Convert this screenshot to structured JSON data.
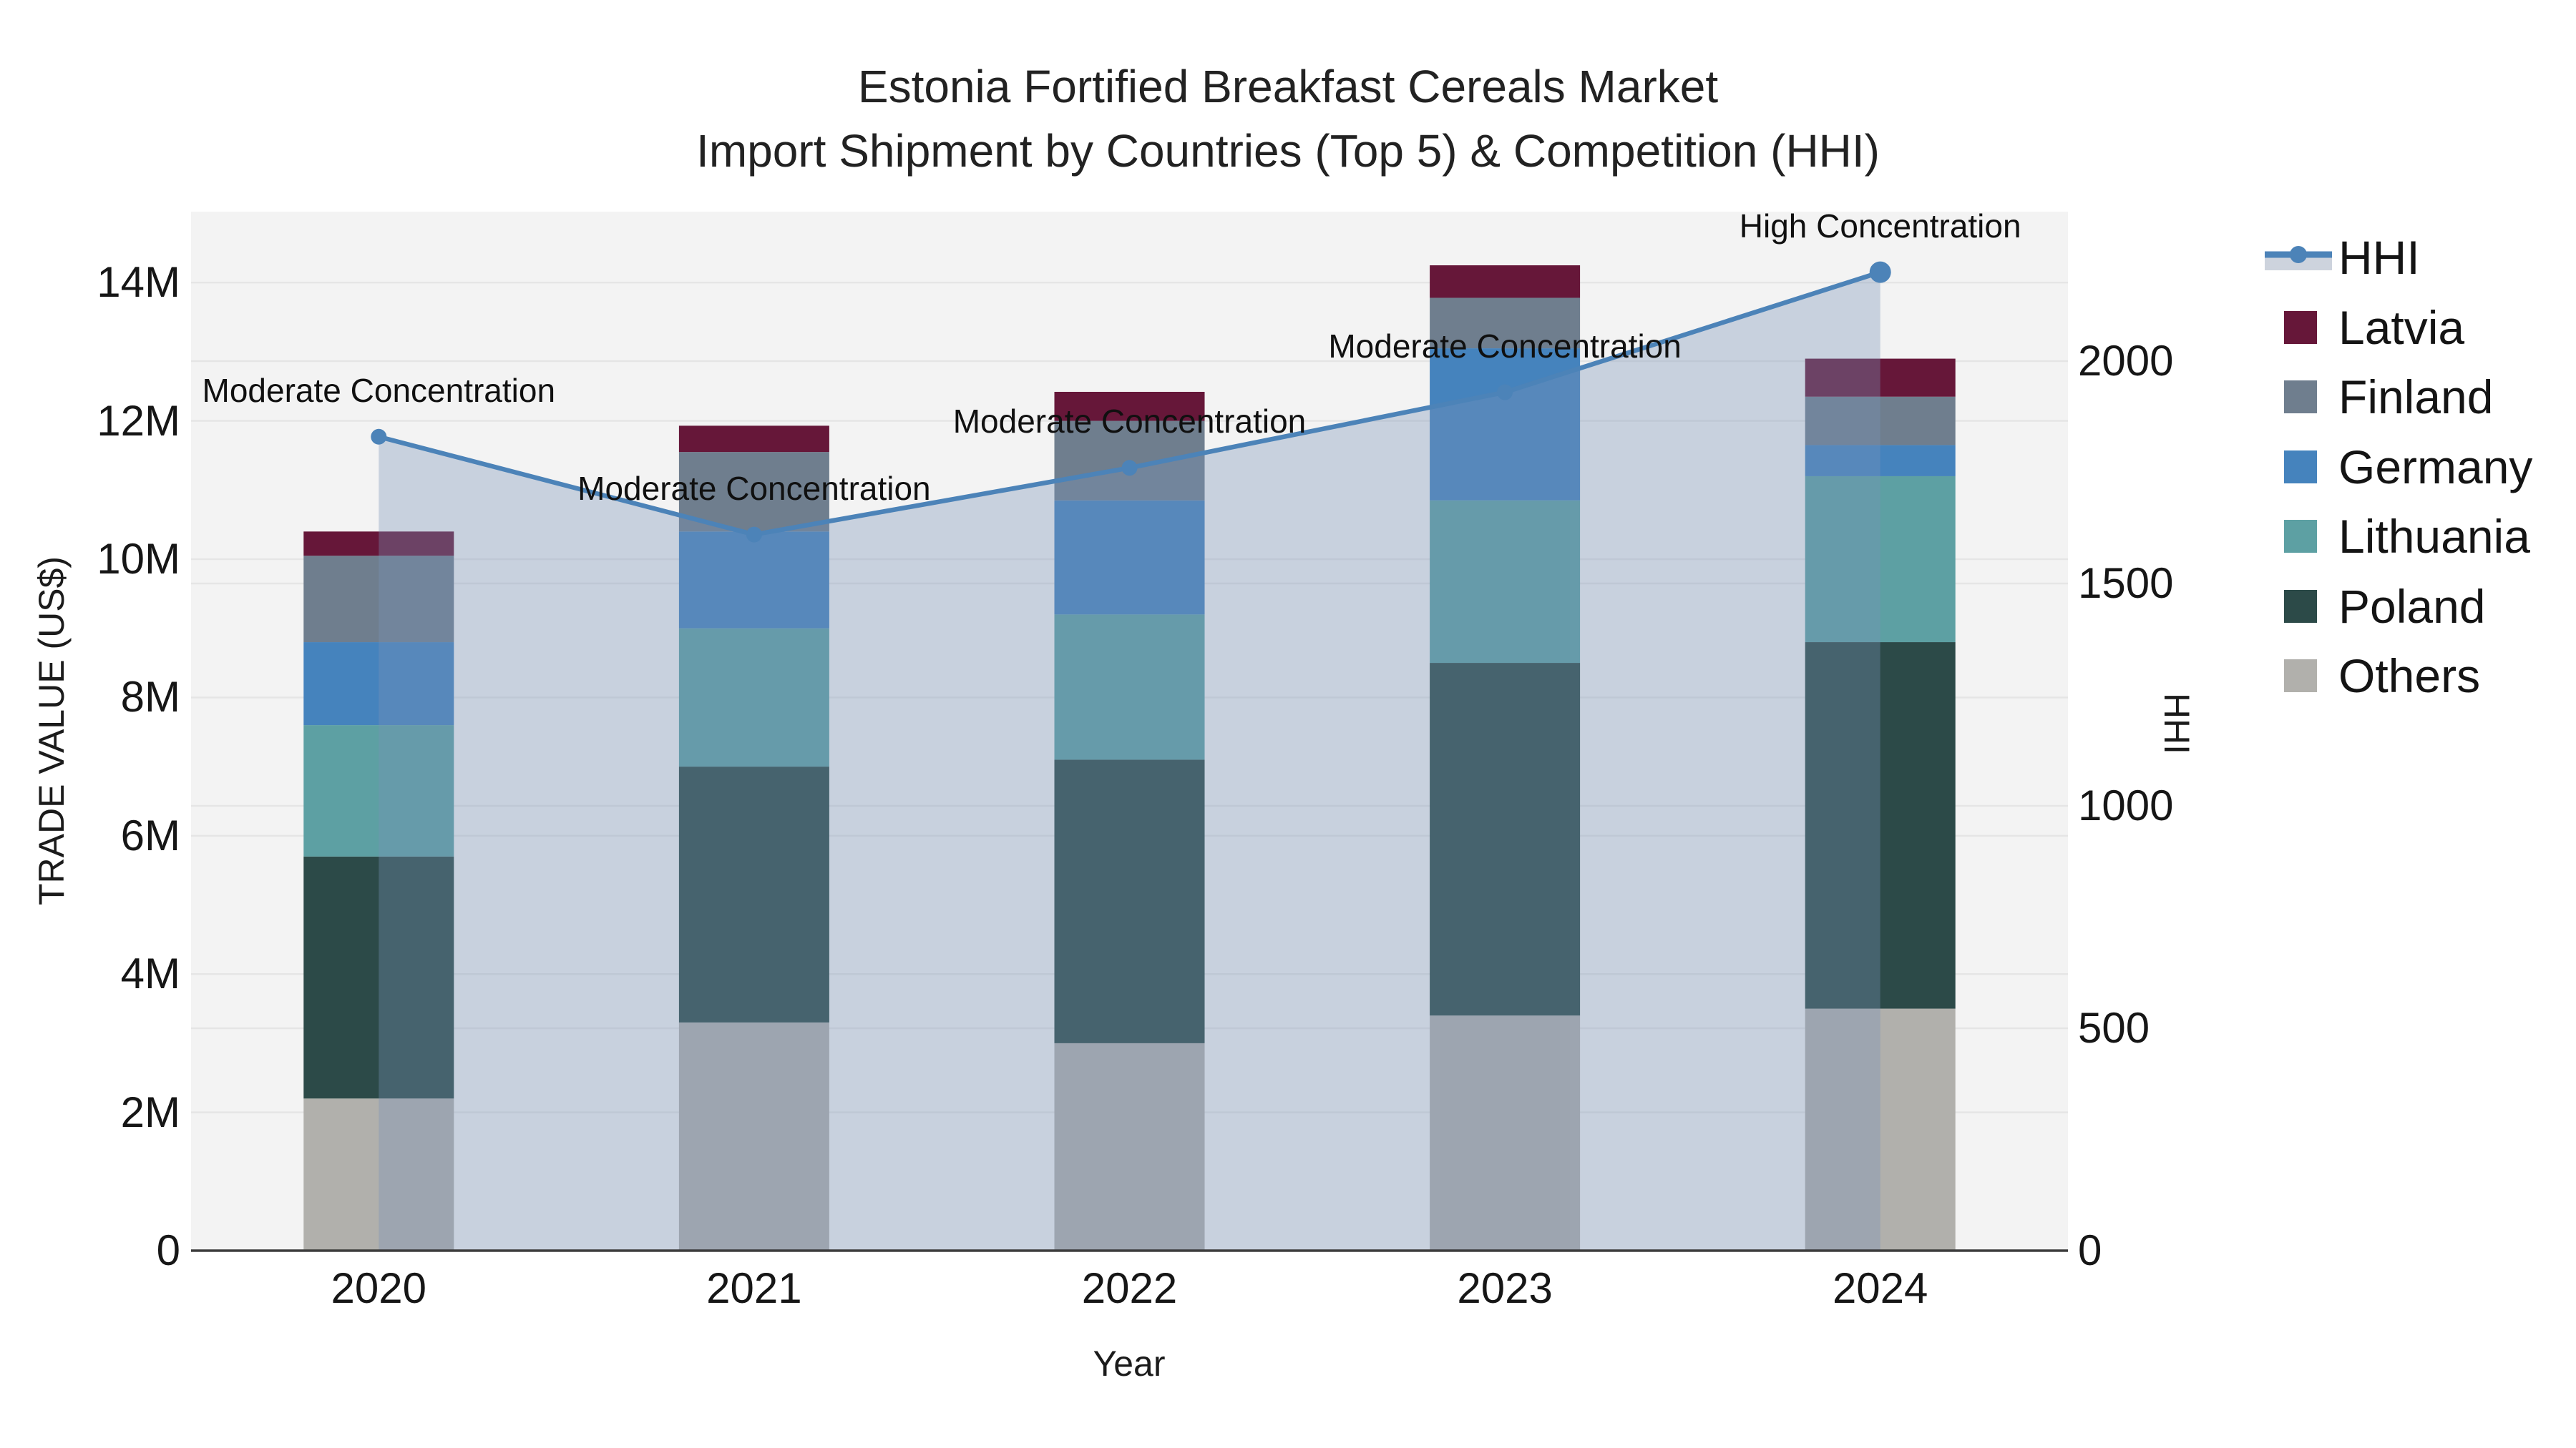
{
  "title": {
    "line1": "Estonia Fortified Breakfast Cereals Market",
    "line2": "Import Shipment by Countries (Top 5) & Competition (HHI)"
  },
  "chart_data": {
    "type": "bar",
    "subtype": "stacked-bar-with-line",
    "categories": [
      "2020",
      "2021",
      "2022",
      "2023",
      "2024"
    ],
    "series": [
      {
        "name": "Others",
        "color": "#b1b0ac",
        "values": [
          2.2,
          3.3,
          3.0,
          3.4,
          3.5
        ]
      },
      {
        "name": "Poland",
        "color": "#2c4a48",
        "values": [
          3.5,
          3.7,
          4.1,
          5.1,
          5.3
        ]
      },
      {
        "name": "Lithuania",
        "color": "#5da0a3",
        "values": [
          1.9,
          2.0,
          2.1,
          2.35,
          2.4
        ]
      },
      {
        "name": "Germany",
        "color": "#4583bd",
        "values": [
          1.2,
          1.4,
          1.65,
          2.2,
          0.45
        ]
      },
      {
        "name": "Finland",
        "color": "#6f7e8e",
        "values": [
          1.25,
          1.15,
          1.15,
          0.73,
          0.7
        ]
      },
      {
        "name": "Latvia",
        "color": "#661739",
        "values": [
          0.35,
          0.38,
          0.42,
          0.47,
          0.55
        ]
      }
    ],
    "bar_totals_millions": [
      10.4,
      11.93,
      12.42,
      14.25,
      12.9
    ],
    "line_series": {
      "name": "HHI",
      "color": "#4c83b8",
      "area_fill": "rgba(119,146,182,0.35)",
      "values": [
        1830,
        1610,
        1760,
        1930,
        2200
      ]
    },
    "annotations": [
      {
        "category": "2020",
        "text": "Moderate Concentration"
      },
      {
        "category": "2021",
        "text": "Moderate Concentration"
      },
      {
        "category": "2022",
        "text": "Moderate Concentration"
      },
      {
        "category": "2023",
        "text": "Moderate Concentration"
      },
      {
        "category": "2024",
        "text": "High Concentration"
      }
    ],
    "left_axis": {
      "label": "TRADE VALUE (US$)",
      "unit": "millions US$",
      "ticks": [
        {
          "value": 0,
          "label": "0"
        },
        {
          "value": 2,
          "label": "2M"
        },
        {
          "value": 4,
          "label": "4M"
        },
        {
          "value": 6,
          "label": "6M"
        },
        {
          "value": 8,
          "label": "8M"
        },
        {
          "value": 10,
          "label": "10M"
        },
        {
          "value": 12,
          "label": "12M"
        },
        {
          "value": 14,
          "label": "14M"
        }
      ],
      "range": [
        0,
        15.03
      ]
    },
    "right_axis": {
      "label": "HHI",
      "ticks": [
        {
          "value": 0,
          "label": "0"
        },
        {
          "value": 500,
          "label": "500"
        },
        {
          "value": 1000,
          "label": "1000"
        },
        {
          "value": 1500,
          "label": "1500"
        },
        {
          "value": 2000,
          "label": "2000"
        }
      ],
      "range": [
        0,
        2336
      ]
    },
    "x_axis": {
      "label": "Year"
    },
    "legend": [
      {
        "name": "HHI",
        "type": "line"
      },
      {
        "name": "Latvia",
        "type": "swatch",
        "color": "#661739"
      },
      {
        "name": "Finland",
        "type": "swatch",
        "color": "#6f7e8e"
      },
      {
        "name": "Germany",
        "type": "swatch",
        "color": "#4583bd"
      },
      {
        "name": "Lithuania",
        "type": "swatch",
        "color": "#5da0a3"
      },
      {
        "name": "Poland",
        "type": "swatch",
        "color": "#2c4a48"
      },
      {
        "name": "Others",
        "type": "swatch",
        "color": "#b1b0ac"
      }
    ],
    "style": {
      "plot_bg": "#f3f3f3",
      "grid_color": "#e5e5e5",
      "axis_line_color": "#3d3d3d",
      "legend_band_color": "#cdd3dd"
    },
    "legend_position": "right",
    "grid": true
  }
}
